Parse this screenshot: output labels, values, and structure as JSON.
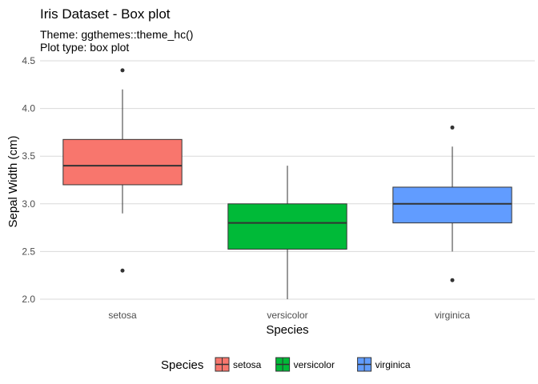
{
  "chart_data": {
    "type": "box",
    "title": "Iris Dataset - Box plot",
    "subtitle_lines": [
      "Theme: ggthemes::theme_hc()",
      "Plot type: box plot"
    ],
    "xlabel": "Species",
    "ylabel": "Sepal Width (cm)",
    "ylim": [
      1.95,
      4.55
    ],
    "yticks": [
      2.0,
      2.5,
      3.0,
      3.5,
      4.0,
      4.5
    ],
    "ytick_labels": [
      "2.0",
      "2.5",
      "3.0",
      "3.5",
      "4.0",
      "4.5"
    ],
    "grid": "horizontal",
    "categories": [
      "setosa",
      "versicolor",
      "virginica"
    ],
    "series": [
      {
        "category": "setosa",
        "color": "#F8766D",
        "whisker_low": 2.9,
        "q1": 3.2,
        "median": 3.4,
        "q3": 3.675,
        "whisker_high": 4.2,
        "outliers": [
          4.4,
          2.3
        ]
      },
      {
        "category": "versicolor",
        "color": "#00BA38",
        "whisker_low": 2.0,
        "q1": 2.525,
        "median": 2.8,
        "q3": 3.0,
        "whisker_high": 3.4,
        "outliers": []
      },
      {
        "category": "virginica",
        "color": "#619CFF",
        "whisker_low": 2.5,
        "q1": 2.8,
        "median": 3.0,
        "q3": 3.175,
        "whisker_high": 3.6,
        "outliers": [
          3.8,
          2.2
        ]
      }
    ],
    "legend": {
      "title": "Species",
      "position": "bottom",
      "entries": [
        "setosa",
        "versicolor",
        "virginica"
      ]
    }
  }
}
